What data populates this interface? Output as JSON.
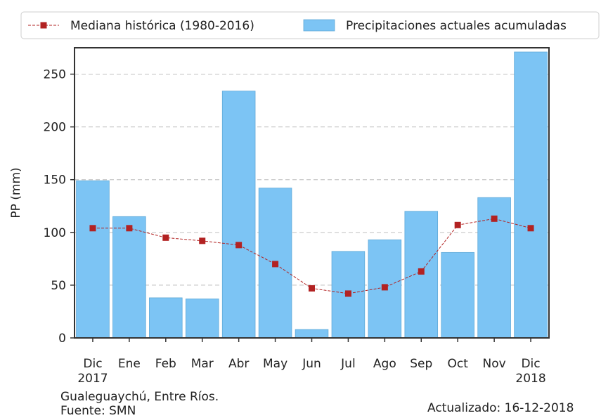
{
  "chart_data": {
    "type": "bar",
    "categories": [
      "Dic\n2017",
      "Ene",
      "Feb",
      "Mar",
      "Abr",
      "May",
      "Jun",
      "Jul",
      "Ago",
      "Sep",
      "Oct",
      "Nov",
      "Dic\n2018"
    ],
    "series": [
      {
        "name": "Precipitaciones actuales acumuladas",
        "kind": "bar",
        "color": "#7cc4f4",
        "values": [
          149,
          115,
          38,
          37,
          234,
          142,
          8,
          82,
          93,
          120,
          81,
          133,
          271
        ]
      },
      {
        "name": "Mediana histórica (1980-2016)",
        "kind": "line",
        "color": "#b22222",
        "values": [
          104,
          104,
          95,
          92,
          88,
          70,
          47,
          42,
          48,
          63,
          107,
          113,
          104
        ]
      }
    ],
    "ylabel": "PP (mm)",
    "ylim": [
      0,
      275
    ],
    "yticks": [
      0,
      50,
      100,
      150,
      200,
      250
    ],
    "grid": "horizontal-dashed",
    "legend_position": "top-outside"
  },
  "footer": {
    "location_line1": "Gualeguaychú, Entre Ríos.",
    "location_line2": "Fuente: SMN",
    "updated": "Actualizado: 16-12-2018"
  }
}
